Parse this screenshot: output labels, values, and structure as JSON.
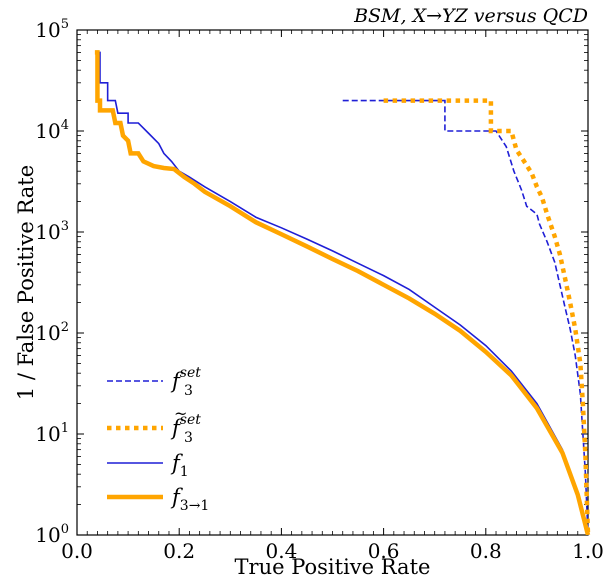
{
  "chart_data": {
    "type": "line",
    "title": "BSM, X→YZ versus QCD",
    "xlabel": "True Positive Rate",
    "ylabel": "1 / False Positive Rate",
    "xlim": [
      0.0,
      1.0
    ],
    "ylim": [
      1,
      100000
    ],
    "yscale": "log",
    "xticks": [
      0.0,
      0.2,
      0.4,
      0.6,
      0.8,
      1.0
    ],
    "xtick_labels": [
      "0.0",
      "0.2",
      "0.4",
      "0.6",
      "0.8",
      "1.0"
    ],
    "yticks": [
      1,
      10,
      100,
      1000,
      10000,
      100000
    ],
    "ytick_labels": [
      {
        "base": "10",
        "exp": "0"
      },
      {
        "base": "10",
        "exp": "1"
      },
      {
        "base": "10",
        "exp": "2"
      },
      {
        "base": "10",
        "exp": "3"
      },
      {
        "base": "10",
        "exp": "4"
      },
      {
        "base": "10",
        "exp": "5"
      }
    ],
    "grid": false,
    "legend_position": "bottom-left",
    "series": [
      {
        "name": "f3set",
        "legend": {
          "main": "f",
          "sub": "3",
          "sup": "set",
          "tilde": false
        },
        "color": "#1f1fd6",
        "style": "dashed",
        "width": 1.6,
        "points": [
          [
            0.52,
            20000
          ],
          [
            0.72,
            20000
          ],
          [
            0.72,
            10000
          ],
          [
            0.82,
            10000
          ],
          [
            0.84,
            7000
          ],
          [
            0.855,
            4000
          ],
          [
            0.87,
            2600
          ],
          [
            0.88,
            1800
          ],
          [
            0.9,
            1500
          ],
          [
            0.905,
            1200
          ],
          [
            0.92,
            800
          ],
          [
            0.935,
            500
          ],
          [
            0.945,
            300
          ],
          [
            0.955,
            180
          ],
          [
            0.965,
            110
          ],
          [
            0.975,
            60
          ],
          [
            0.985,
            25
          ],
          [
            0.99,
            10
          ],
          [
            0.995,
            4
          ],
          [
            1.0,
            1
          ]
        ]
      },
      {
        "name": "f3set_tilde",
        "legend": {
          "main": "f",
          "sub": "3",
          "sup": "set",
          "tilde": true
        },
        "color": "#ffa500",
        "style": "dotted",
        "width": 4.5,
        "points": [
          [
            0.6,
            20000
          ],
          [
            0.81,
            20000
          ],
          [
            0.81,
            10000
          ],
          [
            0.85,
            10000
          ],
          [
            0.86,
            6500
          ],
          [
            0.875,
            5000
          ],
          [
            0.89,
            3800
          ],
          [
            0.9,
            2800
          ],
          [
            0.91,
            2200
          ],
          [
            0.92,
            1500
          ],
          [
            0.935,
            900
          ],
          [
            0.945,
            600
          ],
          [
            0.955,
            350
          ],
          [
            0.965,
            200
          ],
          [
            0.975,
            110
          ],
          [
            0.985,
            50
          ],
          [
            0.99,
            20
          ],
          [
            0.995,
            6
          ],
          [
            1.0,
            1
          ]
        ]
      },
      {
        "name": "f1",
        "legend": {
          "main": "f",
          "sub": "1",
          "sup": "",
          "tilde": false
        },
        "color": "#1f1fd6",
        "style": "solid",
        "width": 1.6,
        "points": [
          [
            0.04,
            60000
          ],
          [
            0.045,
            60000
          ],
          [
            0.045,
            30000
          ],
          [
            0.06,
            30000
          ],
          [
            0.06,
            20000
          ],
          [
            0.075,
            20000
          ],
          [
            0.08,
            15000
          ],
          [
            0.1,
            15000
          ],
          [
            0.1,
            12000
          ],
          [
            0.12,
            12000
          ],
          [
            0.14,
            9500
          ],
          [
            0.16,
            7500
          ],
          [
            0.17,
            6000
          ],
          [
            0.185,
            5000
          ],
          [
            0.2,
            4000
          ],
          [
            0.22,
            3500
          ],
          [
            0.25,
            2800
          ],
          [
            0.3,
            2000
          ],
          [
            0.35,
            1400
          ],
          [
            0.4,
            1100
          ],
          [
            0.45,
            850
          ],
          [
            0.5,
            650
          ],
          [
            0.55,
            490
          ],
          [
            0.6,
            370
          ],
          [
            0.65,
            270
          ],
          [
            0.7,
            180
          ],
          [
            0.75,
            120
          ],
          [
            0.8,
            75
          ],
          [
            0.85,
            42
          ],
          [
            0.9,
            20
          ],
          [
            0.95,
            7
          ],
          [
            0.98,
            2.5
          ],
          [
            1.0,
            1
          ]
        ]
      },
      {
        "name": "f3to1",
        "legend": {
          "main": "f",
          "sub": "3→1",
          "sup": "",
          "tilde": false
        },
        "color": "#ffa500",
        "style": "solid",
        "width": 4.5,
        "points": [
          [
            0.035,
            60000
          ],
          [
            0.04,
            60000
          ],
          [
            0.04,
            20000
          ],
          [
            0.045,
            20000
          ],
          [
            0.045,
            16000
          ],
          [
            0.07,
            16000
          ],
          [
            0.075,
            12000
          ],
          [
            0.085,
            12000
          ],
          [
            0.09,
            9000
          ],
          [
            0.1,
            8000
          ],
          [
            0.105,
            6000
          ],
          [
            0.12,
            6000
          ],
          [
            0.13,
            5000
          ],
          [
            0.15,
            4500
          ],
          [
            0.17,
            4300
          ],
          [
            0.19,
            4200
          ],
          [
            0.21,
            3500
          ],
          [
            0.23,
            3000
          ],
          [
            0.25,
            2500
          ],
          [
            0.3,
            1800
          ],
          [
            0.35,
            1250
          ],
          [
            0.4,
            950
          ],
          [
            0.45,
            720
          ],
          [
            0.5,
            540
          ],
          [
            0.55,
            410
          ],
          [
            0.6,
            300
          ],
          [
            0.65,
            220
          ],
          [
            0.7,
            155
          ],
          [
            0.75,
            105
          ],
          [
            0.8,
            65
          ],
          [
            0.85,
            38
          ],
          [
            0.9,
            18
          ],
          [
            0.95,
            6.5
          ],
          [
            0.98,
            2.5
          ],
          [
            1.0,
            1
          ]
        ]
      }
    ]
  }
}
